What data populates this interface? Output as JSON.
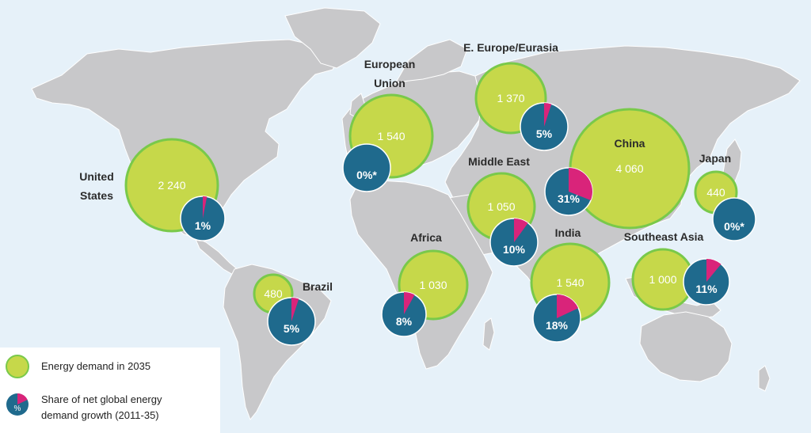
{
  "colors": {
    "ocean": "#e6f1f9",
    "land": "#c8c8ca",
    "land_border": "#ffffff",
    "demand_fill": "#c6d84a",
    "demand_stroke": "#79c94a",
    "share_fill": "#1f6a8d",
    "share_slice": "#d9247a",
    "text_dark": "#2b2b2b",
    "text_light": "#ffffff"
  },
  "regions": [
    {
      "id": "united-states",
      "label": "United States",
      "demand": "2 240",
      "share": "1%",
      "share_value": 1
    },
    {
      "id": "european-union",
      "label": "European Union",
      "demand": "1 540",
      "share": "0%*",
      "share_value": 0
    },
    {
      "id": "e-europe-eurasia",
      "label": "E. Europe/Eurasia",
      "demand": "1 370",
      "share": "5%",
      "share_value": 5
    },
    {
      "id": "china",
      "label": "China",
      "demand": "4 060",
      "share": "31%",
      "share_value": 31
    },
    {
      "id": "japan",
      "label": "Japan",
      "demand": "440",
      "share": "0%*",
      "share_value": 0
    },
    {
      "id": "middle-east",
      "label": "Middle East",
      "demand": "1 050",
      "share": "10%",
      "share_value": 10
    },
    {
      "id": "africa",
      "label": "Africa",
      "demand": "1 030",
      "share": "8%",
      "share_value": 8
    },
    {
      "id": "india",
      "label": "India",
      "demand": "1 540",
      "share": "18%",
      "share_value": 18
    },
    {
      "id": "southeast-asia",
      "label": "Southeast Asia",
      "demand": "1 000",
      "share": "11%",
      "share_value": 11
    },
    {
      "id": "brazil",
      "label": "Brazil",
      "demand": "480",
      "share": "5%",
      "share_value": 5
    }
  ],
  "legend": {
    "demand_label": "Energy demand in 2035",
    "share_label_line1": "Share of net global energy",
    "share_label_line2": "demand growth (2011-35)",
    "share_swatch_text": "%"
  }
}
